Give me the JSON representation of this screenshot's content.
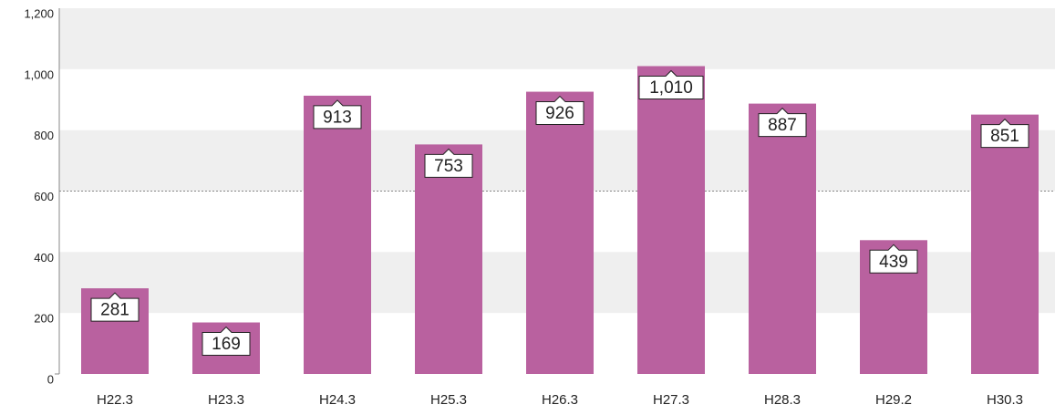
{
  "chart_data": {
    "type": "bar",
    "categories": [
      "H22.3",
      "H23.3",
      "H24.3",
      "H25.3",
      "H26.3",
      "H27.3",
      "H28.3",
      "H29.2",
      "H30.3"
    ],
    "values": [
      281,
      169,
      913,
      753,
      926,
      1010,
      887,
      439,
      851
    ],
    "value_labels": [
      "281",
      "169",
      "913",
      "753",
      "926",
      "1,010",
      "887",
      "439",
      "851"
    ],
    "color": "#b9619f",
    "ylim": [
      0,
      1200
    ],
    "yticks": [
      0,
      200,
      400,
      600,
      800,
      {
        "value": 1000,
        "label": "1,000"
      },
      {
        "value": 1200,
        "label": "1,200"
      }
    ],
    "reference_line": 600,
    "grid": "bands"
  }
}
